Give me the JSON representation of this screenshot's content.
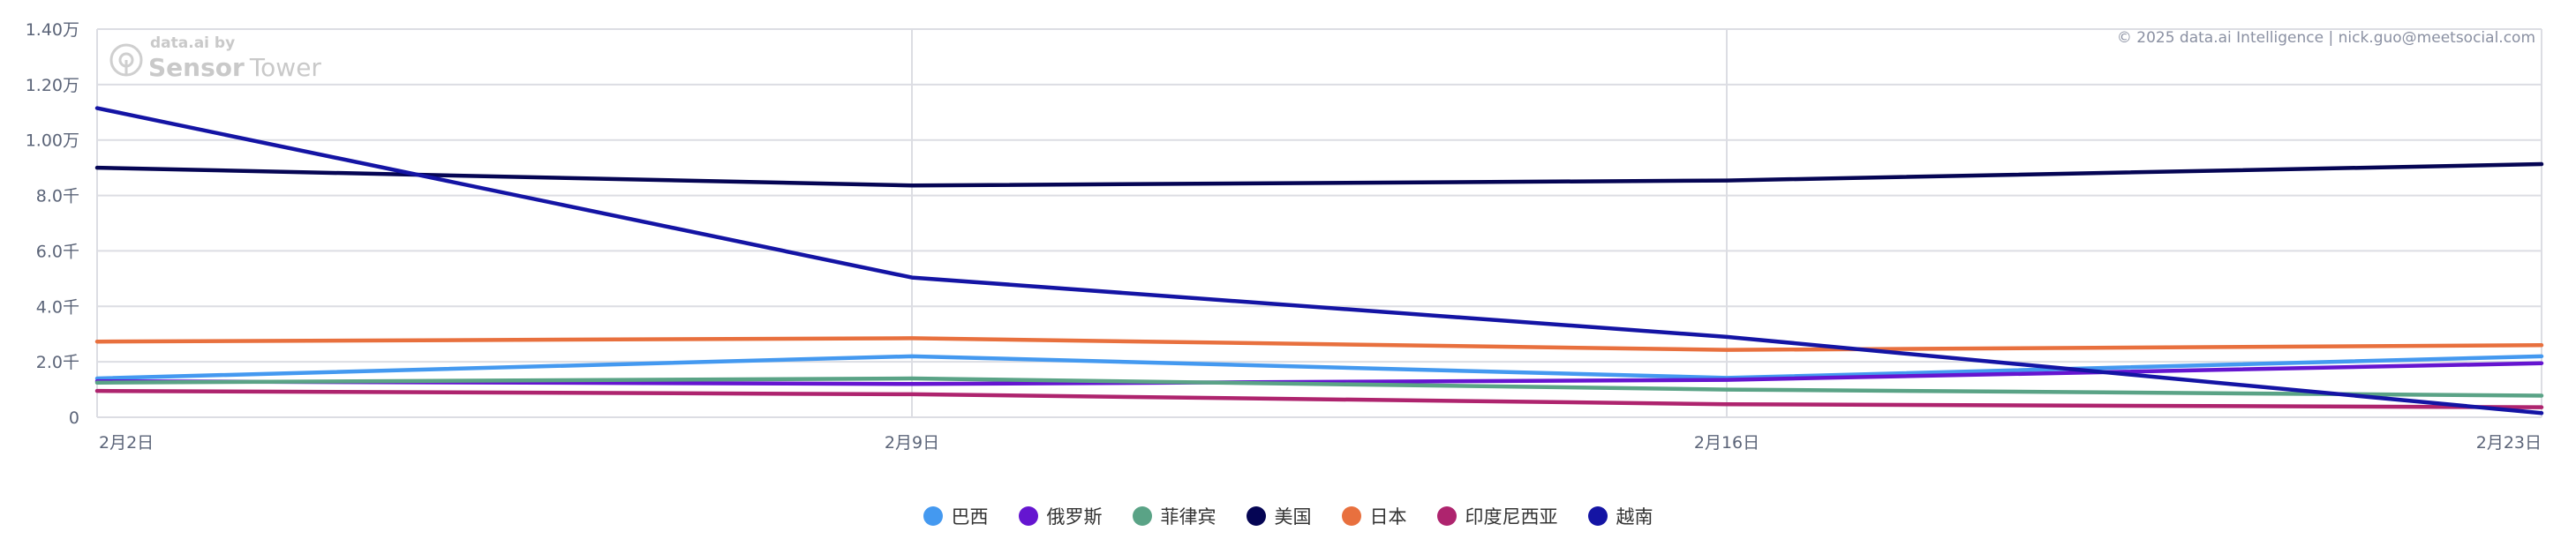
{
  "chart_data": {
    "type": "line",
    "title": "",
    "xlabel": "",
    "ylabel": "",
    "x": [
      "2月2日",
      "2月9日",
      "2月16日",
      "2月23日"
    ],
    "ylim": [
      0,
      14000
    ],
    "yticks": [
      0,
      2000,
      4000,
      6000,
      8000,
      10000,
      12000,
      14000
    ],
    "ytick_labels": [
      "0",
      "2.0千",
      "4.0千",
      "6.0千",
      "8.0千",
      "1.00万",
      "1.20万",
      "1.40万"
    ],
    "grid": true,
    "legend_position": "bottom",
    "series": [
      {
        "name": "巴西",
        "color": "#4499f0",
        "values": [
          1400,
          2200,
          1420,
          2200
        ]
      },
      {
        "name": "俄罗斯",
        "color": "#6515d0",
        "values": [
          1300,
          1200,
          1350,
          1950
        ]
      },
      {
        "name": "菲律宾",
        "color": "#5aa386",
        "values": [
          1250,
          1400,
          1000,
          780
        ]
      },
      {
        "name": "美国",
        "color": "#050554",
        "values": [
          9000,
          8360,
          8540,
          9130
        ]
      },
      {
        "name": "日本",
        "color": "#e8703e",
        "values": [
          2730,
          2850,
          2430,
          2600
        ]
      },
      {
        "name": "印度尼西亚",
        "color": "#ae246e",
        "values": [
          950,
          830,
          470,
          360
        ]
      },
      {
        "name": "越南",
        "color": "#1414a4",
        "values": [
          11150,
          5040,
          2900,
          150
        ]
      }
    ]
  },
  "watermark": {
    "line1": "data.ai by",
    "line2a": "Sensor",
    "line2b": "Tower"
  },
  "copyright": "© 2025 data.ai Intelligence | nick.guo@meetsocial.com"
}
